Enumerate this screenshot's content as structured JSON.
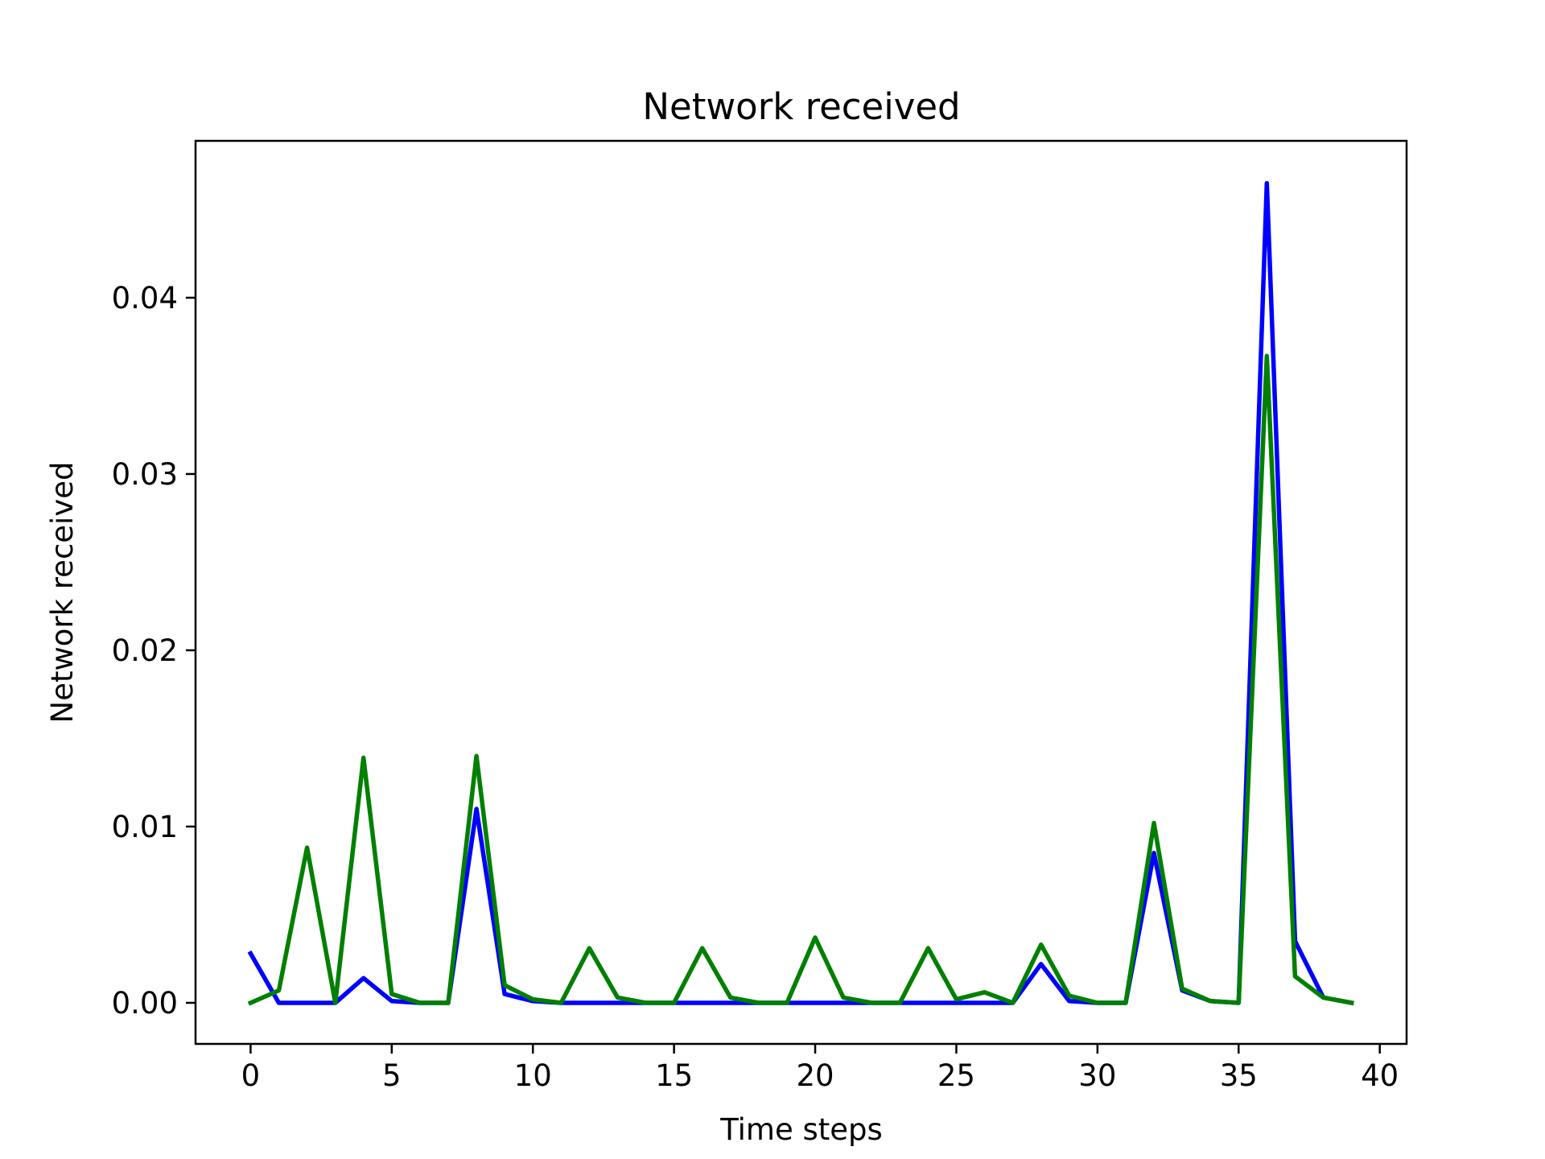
{
  "chart_data": {
    "type": "line",
    "title": "Network received",
    "xlabel": "Time steps",
    "ylabel": "Network received",
    "xlim": [
      -1.95,
      40.95
    ],
    "ylim": [
      -0.00233,
      0.0489
    ],
    "x_ticks": [
      0,
      5,
      10,
      15,
      20,
      25,
      30,
      35,
      40
    ],
    "x_tick_labels": [
      "0",
      "5",
      "10",
      "15",
      "20",
      "25",
      "30",
      "35",
      "40"
    ],
    "y_ticks": [
      0.0,
      0.01,
      0.02,
      0.03,
      0.04
    ],
    "y_tick_labels": [
      "0.00",
      "0.01",
      "0.02",
      "0.03",
      "0.04"
    ],
    "grid": false,
    "x": [
      0,
      1,
      2,
      3,
      4,
      5,
      6,
      7,
      8,
      9,
      10,
      11,
      12,
      13,
      14,
      15,
      16,
      17,
      18,
      19,
      20,
      21,
      22,
      23,
      24,
      25,
      26,
      27,
      28,
      29,
      30,
      31,
      32,
      33,
      34,
      35,
      36,
      37,
      38,
      39
    ],
    "series": [
      {
        "color": "#0000ff",
        "values": [
          0.0028,
          0.0,
          0.0,
          0.0,
          0.0014,
          0.0001,
          0.0,
          0.0,
          0.011,
          0.0005,
          0.0001,
          0.0,
          0.0,
          0.0,
          0.0,
          0.0,
          0.0,
          0.0,
          0.0,
          0.0,
          0.0,
          0.0,
          0.0,
          0.0,
          0.0,
          0.0,
          0.0,
          0.0,
          0.0022,
          0.0001,
          0.0,
          0.0,
          0.0085,
          0.0007,
          0.0001,
          0.0,
          0.0465,
          0.0035,
          0.0003,
          0.0
        ]
      },
      {
        "color": "#008000",
        "values": [
          0.0,
          0.0007,
          0.0088,
          0.0,
          0.0139,
          0.0005,
          0.0,
          0.0,
          0.014,
          0.001,
          0.0002,
          0.0,
          0.0031,
          0.0003,
          0.0,
          0.0,
          0.0031,
          0.0003,
          0.0,
          0.0,
          0.0037,
          0.0003,
          0.0,
          0.0,
          0.0031,
          0.0002,
          0.0006,
          0.0,
          0.0033,
          0.0004,
          0.0,
          0.0,
          0.0102,
          0.0008,
          0.0001,
          0.0,
          0.0367,
          0.0015,
          0.0003,
          0.0
        ]
      }
    ]
  }
}
